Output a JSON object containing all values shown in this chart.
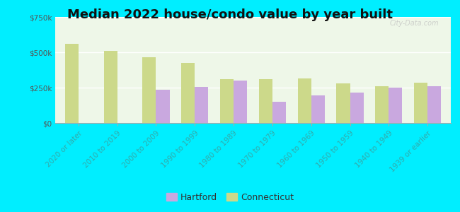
{
  "title": "Median 2022 house/condo value by year built",
  "categories": [
    "2020 or later",
    "2010 to 2019",
    "2000 to 2009",
    "1990 to 1999",
    "1980 to 1989",
    "1970 to 1979",
    "1960 to 1969",
    "1950 to 1959",
    "1940 to 1949",
    "1939 or earlier"
  ],
  "hartford": [
    0,
    0,
    237000,
    253000,
    300000,
    152000,
    193000,
    213000,
    248000,
    260000
  ],
  "connecticut": [
    560000,
    510000,
    465000,
    425000,
    310000,
    310000,
    315000,
    282000,
    258000,
    283000
  ],
  "hartford_color": "#c9a8df",
  "connecticut_color": "#ccd98a",
  "background_outer": "#00eeff",
  "background_plot_color": "#dff0d8",
  "ylim": [
    0,
    750000
  ],
  "yticks": [
    0,
    250000,
    500000,
    750000
  ],
  "ytick_labels": [
    "$0",
    "$250k",
    "$500k",
    "$750k"
  ],
  "bar_width": 0.35,
  "title_fontsize": 13,
  "tick_fontsize": 7.5,
  "label_color": "#33aaaa",
  "legend_fontsize": 9,
  "watermark": "City-Data.com"
}
